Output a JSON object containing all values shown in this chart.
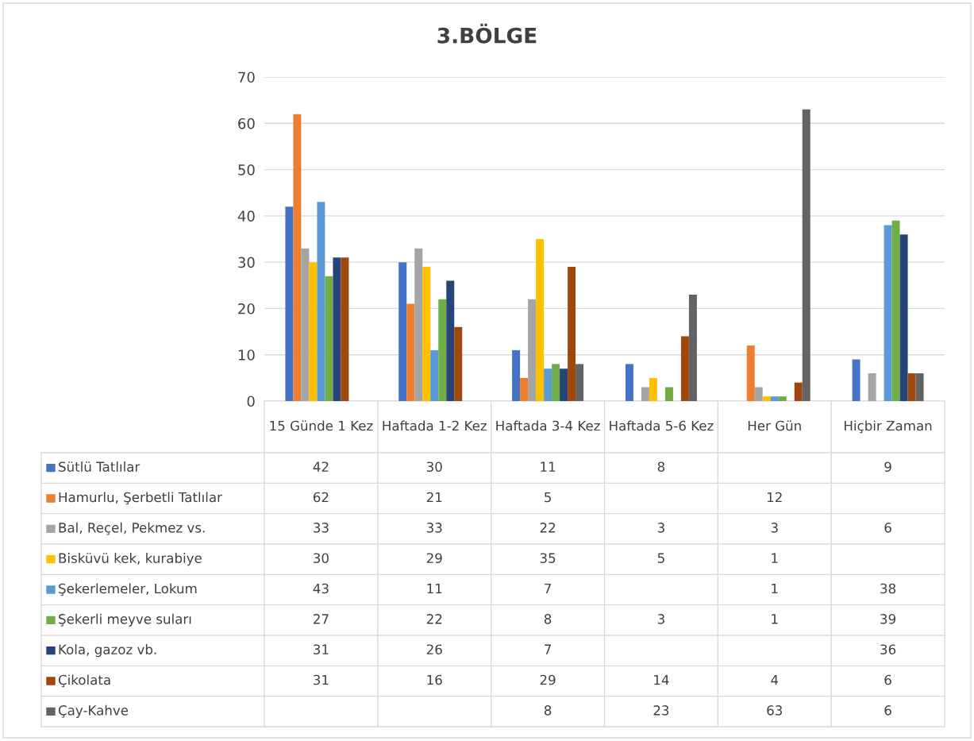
{
  "chart_data": {
    "type": "bar",
    "title": "3.BÖLGE",
    "categories": [
      "15 Günde 1 Kez",
      "Haftada 1-2 Kez",
      "Haftada 3-4 Kez",
      "Haftada 5-6 Kez",
      "Her Gün",
      "Hiçbir Zaman"
    ],
    "series": [
      {
        "name": "Sütlü Tatlılar",
        "color": "#4472c4",
        "values": [
          42,
          30,
          11,
          8,
          null,
          9
        ]
      },
      {
        "name": "Hamurlu, Şerbetli Tatlılar",
        "color": "#ed7d31",
        "values": [
          62,
          21,
          5,
          null,
          12,
          null
        ]
      },
      {
        "name": "Bal, Reçel, Pekmez vs.",
        "color": "#a5a5a5",
        "values": [
          33,
          33,
          22,
          3,
          3,
          6
        ]
      },
      {
        "name": "Bisküvü kek, kurabiye",
        "color": "#ffc000",
        "values": [
          30,
          29,
          35,
          5,
          1,
          null
        ]
      },
      {
        "name": "Şekerlemeler, Lokum",
        "color": "#5b9bd5",
        "values": [
          43,
          11,
          7,
          null,
          1,
          38
        ]
      },
      {
        "name": "Şekerli meyve suları",
        "color": "#70ad47",
        "values": [
          27,
          22,
          8,
          3,
          1,
          39
        ]
      },
      {
        "name": "Kola, gazoz vb.",
        "color": "#264478",
        "values": [
          31,
          26,
          7,
          null,
          null,
          36
        ]
      },
      {
        "name": "Çikolata",
        "color": "#9e480e",
        "values": [
          31,
          16,
          29,
          14,
          4,
          6
        ]
      },
      {
        "name": "Çay-Kahve",
        "color": "#636363",
        "values": [
          null,
          null,
          8,
          23,
          63,
          6
        ]
      }
    ],
    "ylim": [
      0,
      70
    ],
    "yticks": [
      0,
      10,
      20,
      30,
      40,
      50,
      60,
      70
    ],
    "grid": "y",
    "legend": "bottom",
    "data_labels": true
  }
}
